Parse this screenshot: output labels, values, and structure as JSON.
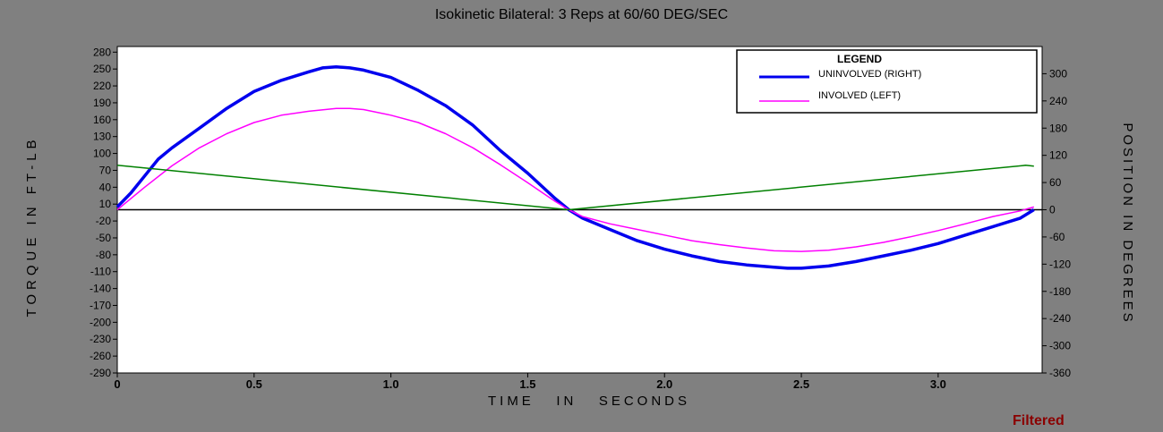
{
  "chart_data": {
    "type": "line",
    "title": "Isokinetic Bilateral: 3 Reps  at 60/60 DEG/SEC",
    "xlabel": "TIME   IN   SECONDS",
    "ylabel_left": "TORQUE IN FT-LB",
    "ylabel_right": "POSITION IN DEGREES",
    "status": "Filtered",
    "xlim": [
      0,
      3.38
    ],
    "ylim_left": [
      -290,
      290
    ],
    "ylim_right": [
      -360,
      360
    ],
    "x_ticks": [
      0,
      0.5,
      1.0,
      1.5,
      2.0,
      2.5,
      3.0
    ],
    "x_tick_labels": [
      "0",
      "0.5",
      "1.0",
      "1.5",
      "2.0",
      "2.5",
      "3.0"
    ],
    "y_left_ticks": [
      280,
      250,
      220,
      190,
      160,
      130,
      100,
      70,
      40,
      10,
      -20,
      -50,
      -80,
      -110,
      -140,
      -170,
      -200,
      -230,
      -260,
      -290
    ],
    "y_right_ticks": [
      300,
      240,
      180,
      120,
      60,
      0,
      -60,
      -120,
      -180,
      -240,
      -300,
      -360
    ],
    "legend": {
      "title": "LEGEND",
      "position": "top-right",
      "entries": [
        {
          "label": "UNINVOLVED (RIGHT)",
          "color": "#0000ee"
        },
        {
          "label": "INVOLVED (LEFT)",
          "color": "#ff00ff"
        }
      ]
    },
    "series": [
      {
        "name": "UNINVOLVED (RIGHT)",
        "color": "#0000ee",
        "axis": "left",
        "x": [
          0,
          0.05,
          0.1,
          0.15,
          0.2,
          0.3,
          0.4,
          0.5,
          0.6,
          0.7,
          0.75,
          0.8,
          0.85,
          0.9,
          1.0,
          1.1,
          1.2,
          1.3,
          1.4,
          1.5,
          1.6,
          1.65,
          1.7,
          1.8,
          1.9,
          2.0,
          2.1,
          2.2,
          2.3,
          2.4,
          2.45,
          2.5,
          2.6,
          2.7,
          2.8,
          2.9,
          3.0,
          3.1,
          3.2,
          3.3,
          3.35
        ],
        "y": [
          5,
          30,
          60,
          90,
          110,
          145,
          180,
          210,
          230,
          245,
          252,
          254,
          252,
          248,
          235,
          212,
          185,
          150,
          105,
          65,
          20,
          0,
          -15,
          -35,
          -55,
          -70,
          -82,
          -92,
          -98,
          -102,
          -104,
          -104,
          -100,
          -92,
          -82,
          -72,
          -60,
          -45,
          -30,
          -15,
          0
        ]
      },
      {
        "name": "INVOLVED (LEFT)",
        "color": "#ff00ff",
        "axis": "left",
        "x": [
          0,
          0.1,
          0.2,
          0.3,
          0.4,
          0.5,
          0.6,
          0.7,
          0.8,
          0.85,
          0.9,
          1.0,
          1.1,
          1.2,
          1.3,
          1.4,
          1.5,
          1.6,
          1.65,
          1.7,
          1.8,
          1.9,
          2.0,
          2.1,
          2.2,
          2.3,
          2.4,
          2.5,
          2.6,
          2.7,
          2.8,
          2.9,
          3.0,
          3.1,
          3.2,
          3.3,
          3.35
        ],
        "y": [
          0,
          40,
          78,
          110,
          135,
          155,
          168,
          175,
          180,
          180,
          178,
          168,
          155,
          135,
          110,
          80,
          48,
          15,
          0,
          -12,
          -25,
          -35,
          -45,
          -55,
          -62,
          -68,
          -73,
          -74,
          -72,
          -66,
          -58,
          -48,
          -37,
          -25,
          -12,
          -2,
          5
        ]
      },
      {
        "name": "",
        "color": "#008000",
        "axis": "right",
        "x": [
          0,
          1.65,
          3.32,
          3.35
        ],
        "y": [
          98,
          0,
          98,
          96
        ]
      }
    ]
  }
}
